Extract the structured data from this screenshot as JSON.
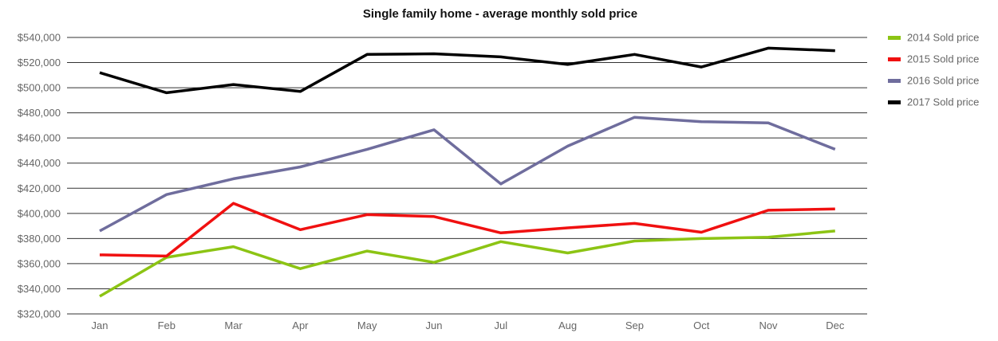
{
  "chart_data": {
    "type": "line",
    "title": "Single family home - average monthly sold price",
    "xlabel": "",
    "ylabel": "",
    "categories": [
      "Jan",
      "Feb",
      "Mar",
      "Apr",
      "May",
      "Jun",
      "Jul",
      "Aug",
      "Sep",
      "Oct",
      "Nov",
      "Dec"
    ],
    "ylim": [
      320000,
      540000
    ],
    "yticks": [
      320000,
      340000,
      360000,
      380000,
      400000,
      420000,
      440000,
      460000,
      480000,
      500000,
      520000,
      540000
    ],
    "ytick_labels": [
      "$320,000",
      "$340,000",
      "$360,000",
      "$380,000",
      "$400,000",
      "$420,000",
      "$440,000",
      "$460,000",
      "$480,000",
      "$500,000",
      "$520,000",
      "$540,000"
    ],
    "grid": true,
    "legend_position": "right",
    "series": [
      {
        "name": "2014 Sold price",
        "color": "#8cc414",
        "values": [
          334000,
          365000,
          373500,
          356000,
          370000,
          361000,
          377500,
          368500,
          378000,
          380000,
          381000,
          386000
        ]
      },
      {
        "name": "2015 Sold price",
        "color": "#f01010",
        "values": [
          367000,
          366000,
          408000,
          387000,
          399000,
          397500,
          384500,
          388500,
          392000,
          385000,
          402500,
          403500
        ]
      },
      {
        "name": "2016 Sold price",
        "color": "#6f6d9d",
        "values": [
          386000,
          415000,
          427500,
          437000,
          451000,
          466500,
          423500,
          453500,
          476500,
          473000,
          472000,
          451000
        ]
      },
      {
        "name": "2017 Sold price",
        "color": "#000000",
        "values": [
          512000,
          496000,
          502500,
          497000,
          526500,
          527000,
          524500,
          518500,
          526500,
          516500,
          531500,
          529500
        ]
      }
    ]
  }
}
